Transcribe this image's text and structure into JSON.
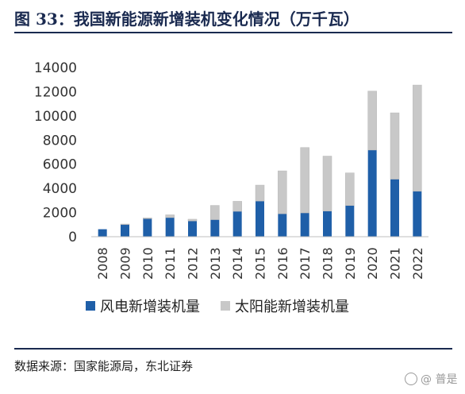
{
  "figure": {
    "title": "图 33：我国新能源新增装机变化情况（万千瓦）",
    "source": "数据来源：国家能源局，东北证券",
    "watermark": "@ 普是"
  },
  "colors": {
    "wind": "#1f5fa8",
    "solar": "#c8c8c8",
    "axis": "#bfbfbf",
    "text": "#333333"
  },
  "chart_data": {
    "type": "bar",
    "stacked": true,
    "title": "",
    "xlabel": "",
    "ylabel": "",
    "ylim": [
      0,
      14000
    ],
    "yticks": [
      0,
      2000,
      4000,
      6000,
      8000,
      10000,
      12000,
      14000
    ],
    "categories": [
      "2008",
      "2009",
      "2010",
      "2011",
      "2012",
      "2013",
      "2014",
      "2015",
      "2016",
      "2017",
      "2018",
      "2019",
      "2020",
      "2021",
      "2022"
    ],
    "series": [
      {
        "name": "风电新增装机量",
        "color": "#1f5fa8",
        "values": [
          620,
          1000,
          1490,
          1580,
          1300,
          1410,
          2100,
          2950,
          1900,
          1970,
          2120,
          2580,
          7170,
          4760,
          3760
        ]
      },
      {
        "name": "太阳能新增装机量",
        "color": "#c8c8c8",
        "values": [
          0,
          50,
          70,
          230,
          150,
          1180,
          830,
          1320,
          3550,
          5410,
          4550,
          2700,
          4880,
          5490,
          8790
        ]
      }
    ],
    "grid": false,
    "legend": "bottom"
  }
}
